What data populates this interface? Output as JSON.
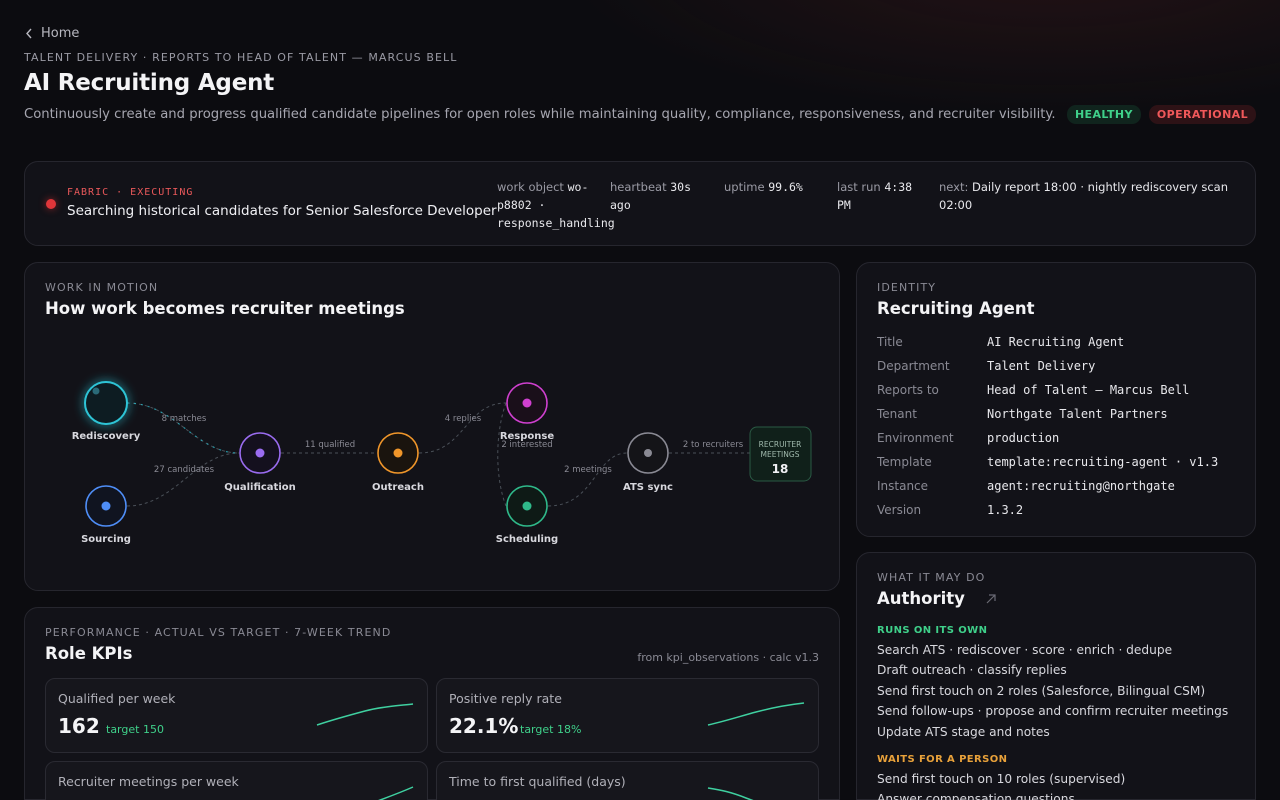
{
  "nav": {
    "back_label": "Home"
  },
  "header": {
    "eyebrow": "TALENT DELIVERY · REPORTS TO HEAD OF TALENT — MARCUS BELL",
    "title": "AI Recruiting Agent",
    "description": "Continuously create and progress qualified candidate pipelines for open roles while maintaining quality, compliance, responsiveness, and recruiter visibility.",
    "badges": {
      "health": "HEALTHY",
      "state": "OPERATIONAL"
    },
    "colors": {
      "healthy": "#3fd08a",
      "operational": "#f0585a"
    }
  },
  "status": {
    "eyebrow": "FABRIC · EXECUTING",
    "task": "Searching historical candidates for Senior Salesforce Developer",
    "work_object_label": "work object",
    "work_object_l1": "wo-",
    "work_object_l2": "p8802 ·",
    "work_object_l3": "response_handling",
    "heartbeat_label": "heartbeat",
    "heartbeat_value": "30s",
    "heartbeat_l2": "ago",
    "uptime_label": "uptime",
    "uptime_value": "99.6%",
    "lastrun_label": "last run",
    "lastrun_value": "4:38",
    "lastrun_l2": "PM",
    "next_label": "next:",
    "next_value": "Daily report 18:00 · nightly rediscovery scan 02:00"
  },
  "work_in_motion": {
    "eyebrow": "WORK IN MOTION",
    "title": "How work becomes recruiter meetings",
    "nodes": {
      "rediscovery": "Rediscovery",
      "sourcing": "Sourcing",
      "qualification": "Qualification",
      "outreach": "Outreach",
      "response": "Response",
      "scheduling": "Scheduling",
      "ats_sync": "ATS sync"
    },
    "edges": {
      "matches": "8 matches",
      "candidates": "27 candidates",
      "qualified": "11 qualified",
      "replies": "4 replies",
      "interested": "2 interested",
      "meetings": "2 meetings",
      "to_recruiters": "2 to recruiters"
    },
    "sink": {
      "line1": "RECRUITER",
      "line2": "MEETINGS",
      "count": "18"
    },
    "colors": {
      "rediscovery": "#2ec4d6",
      "sourcing": "#4f8ef7",
      "qualification": "#9a6cf0",
      "outreach": "#f0962a",
      "response": "#d040d0",
      "scheduling": "#2fb98a",
      "ats_sync": "#8a8a94"
    }
  },
  "identity": {
    "eyebrow": "IDENTITY",
    "title": "Recruiting Agent",
    "rows": [
      {
        "k": "Title",
        "v": "AI Recruiting Agent"
      },
      {
        "k": "Department",
        "v": "Talent Delivery"
      },
      {
        "k": "Reports to",
        "v": "Head of Talent — Marcus Bell"
      },
      {
        "k": "Tenant",
        "v": "Northgate Talent Partners"
      },
      {
        "k": "Environment",
        "v": "production"
      },
      {
        "k": "Template",
        "v": "template:recruiting-agent · v1.3"
      },
      {
        "k": "Instance",
        "v": "agent:recruiting@northgate"
      },
      {
        "k": "Version",
        "v": "1.3.2"
      }
    ]
  },
  "authority": {
    "eyebrow": "WHAT IT MAY DO",
    "title": "Authority",
    "own_label": "RUNS ON ITS OWN",
    "own": [
      "Search ATS · rediscover · score · enrich · dedupe",
      "Draft outreach · classify replies",
      "Send first touch on 2 roles (Salesforce, Bilingual CSM)",
      "Send follow-ups · propose and confirm recruiter meetings",
      "Update ATS stage and notes"
    ],
    "wait_label": "WAITS FOR A PERSON",
    "wait": [
      "Send first touch on 10 roles (supervised)",
      "Answer compensation questions"
    ]
  },
  "kpis": {
    "eyebrow": "PERFORMANCE · ACTUAL VS TARGET · 7-WEEK TREND",
    "title": "Role KPIs",
    "source": "from kpi_observations · calc v1.3",
    "items": [
      {
        "label": "Qualified per week",
        "value": "162",
        "target": "target 150"
      },
      {
        "label": "Positive reply rate",
        "value": "22.1%",
        "target": "target 18%"
      },
      {
        "label": "Recruiter meetings per week",
        "value": "",
        "target": ""
      },
      {
        "label": "Time to first qualified (days)",
        "value": "",
        "target": ""
      }
    ]
  }
}
